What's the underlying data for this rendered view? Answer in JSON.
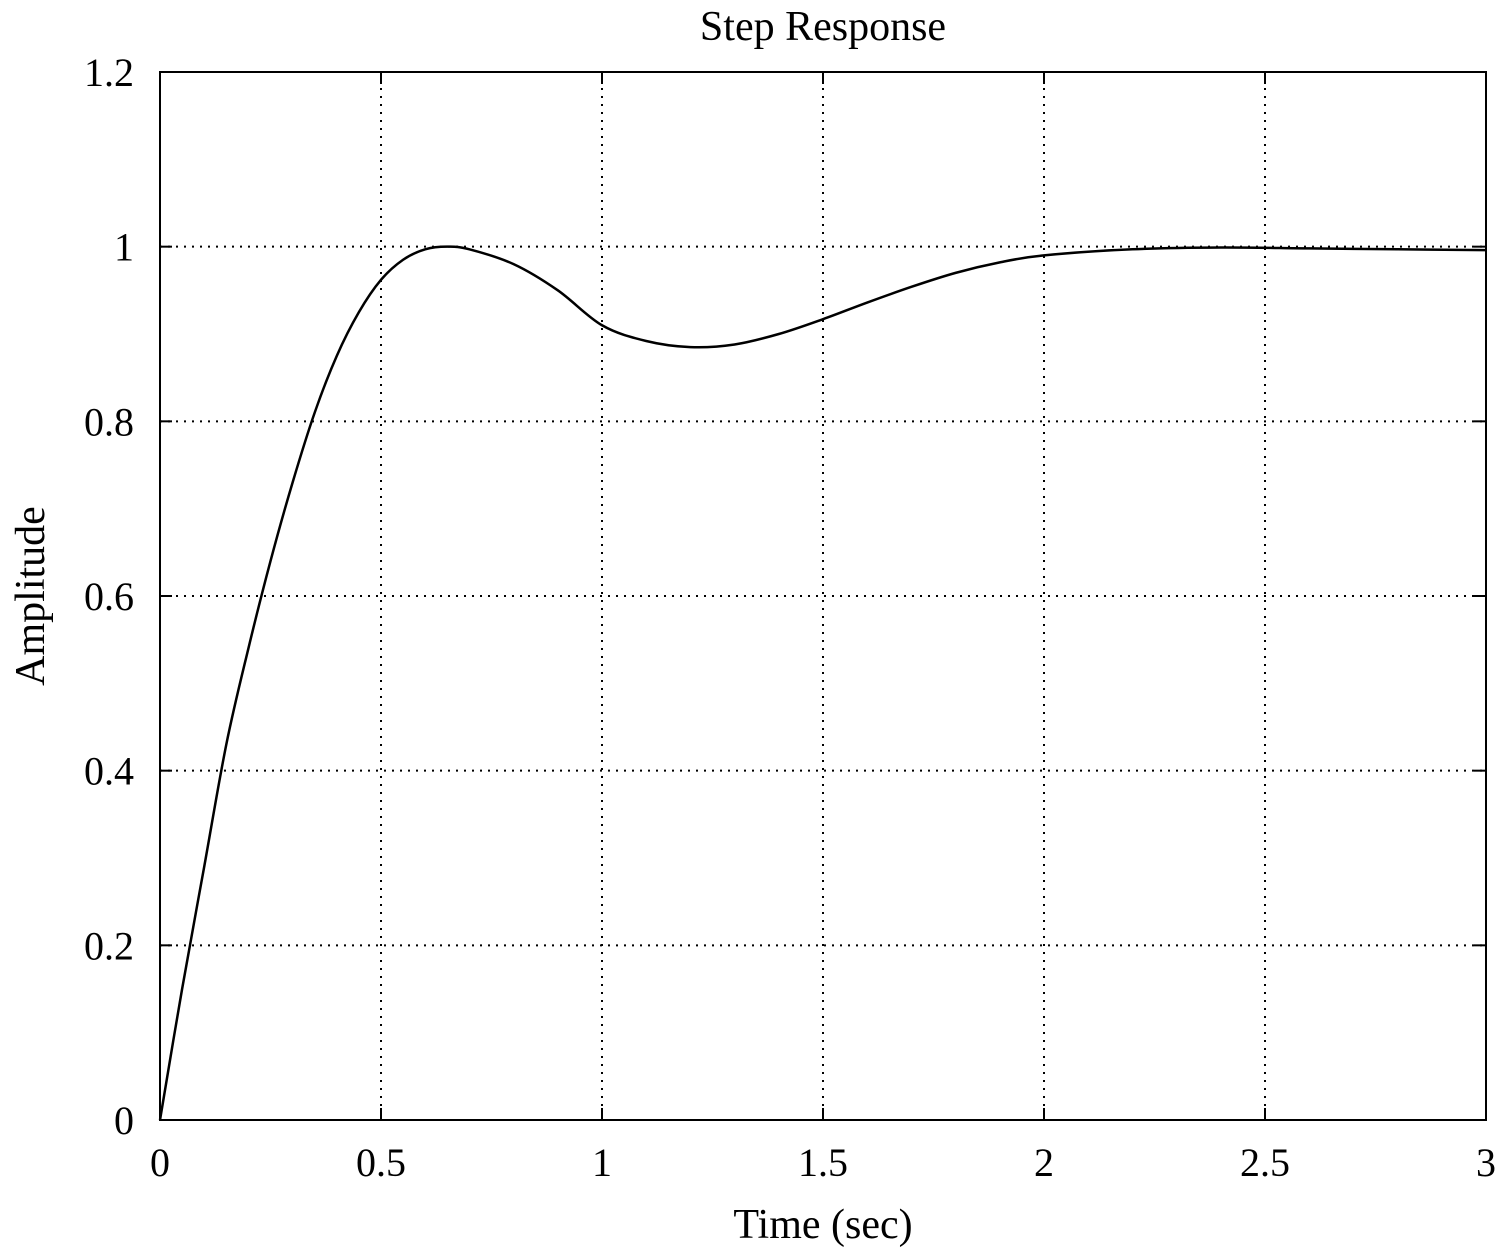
{
  "chart_data": {
    "type": "line",
    "title": "Step Response",
    "xlabel": "Time (sec)",
    "ylabel": "Amplitude",
    "xlim": [
      0,
      3
    ],
    "ylim": [
      0,
      1.2
    ],
    "xticks": [
      0,
      0.5,
      1,
      1.5,
      2,
      2.5,
      3
    ],
    "xtick_labels": [
      "0",
      "0.5",
      "1",
      "1.5",
      "2",
      "2.5",
      "3"
    ],
    "yticks": [
      0,
      0.2,
      0.4,
      0.6,
      0.8,
      1,
      1.2
    ],
    "ytick_labels": [
      "0",
      "0.2",
      "0.4",
      "0.6",
      "0.8",
      "1",
      "1.2"
    ],
    "grid": true,
    "grid_style": "dotted",
    "line_color": "#000000",
    "series": [
      {
        "x": [
          0,
          0.05,
          0.1,
          0.15,
          0.2,
          0.25,
          0.3,
          0.35,
          0.4,
          0.45,
          0.5,
          0.55,
          0.6,
          0.65,
          0.7,
          0.8,
          0.9,
          1.0,
          1.1,
          1.2,
          1.3,
          1.4,
          1.5,
          1.6,
          1.7,
          1.8,
          1.9,
          2.0,
          2.2,
          2.4,
          2.6,
          2.8,
          3.0
        ],
        "y": [
          0,
          0.15,
          0.29,
          0.43,
          0.54,
          0.64,
          0.73,
          0.81,
          0.875,
          0.925,
          0.962,
          0.985,
          0.997,
          1.0,
          0.997,
          0.98,
          0.95,
          0.91,
          0.892,
          0.885,
          0.888,
          0.9,
          0.917,
          0.936,
          0.954,
          0.97,
          0.982,
          0.99,
          0.997,
          0.999,
          0.998,
          0.997,
          0.996
        ]
      }
    ]
  }
}
